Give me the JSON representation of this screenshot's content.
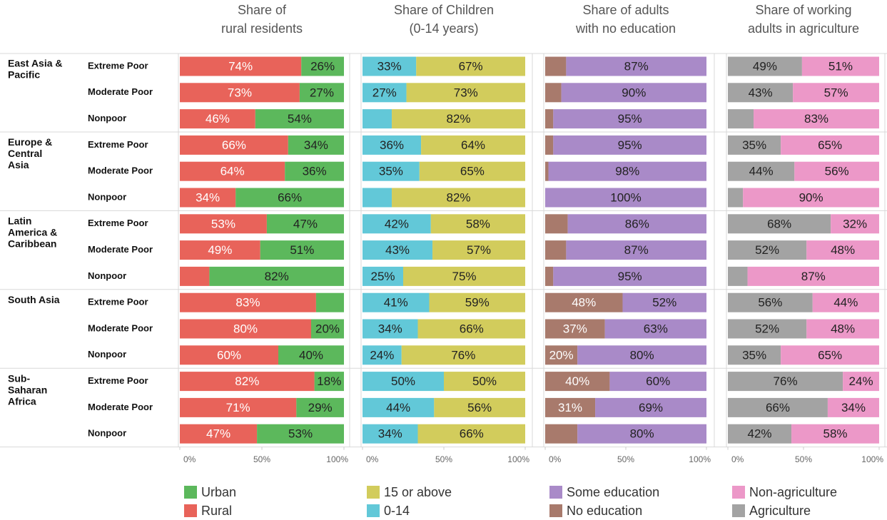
{
  "row_groups": [
    {
      "name": [
        "East Asia &",
        "Pacific"
      ],
      "rows": [
        "Extreme Poor",
        "Moderate Poor",
        "Nonpoor"
      ]
    },
    {
      "name": [
        "Europe &",
        "Central",
        "Asia"
      ],
      "rows": [
        "Extreme Poor",
        "Moderate Poor",
        "Nonpoor"
      ]
    },
    {
      "name": [
        "Latin",
        "America &",
        "Caribbean"
      ],
      "rows": [
        "Extreme Poor",
        "Moderate Poor",
        "Nonpoor"
      ]
    },
    {
      "name": [
        "South Asia"
      ],
      "rows": [
        "Extreme Poor",
        "Moderate Poor",
        "Nonpoor"
      ]
    },
    {
      "name": [
        "Sub-",
        "Saharan",
        "Africa"
      ],
      "rows": [
        "Extreme Poor",
        "Moderate Poor",
        "Nonpoor"
      ]
    }
  ],
  "chart_data": [
    {
      "type": "stacked_barh",
      "title": [
        "Share of",
        "rural residents"
      ],
      "xlim": [
        0,
        100
      ],
      "xticks": [
        {
          "value": 0,
          "label": "0%"
        },
        {
          "value": 50,
          "label": "50%"
        },
        {
          "value": 100,
          "label": "100%"
        }
      ],
      "series": [
        {
          "name": "Rural",
          "color": "#e8635a",
          "label_color": "#ffffff",
          "values": [
            74,
            73,
            46,
            66,
            64,
            34,
            53,
            49,
            18,
            83,
            80,
            60,
            82,
            71,
            47
          ],
          "value_labels": [
            "74%",
            "73%",
            "46%",
            "66%",
            "64%",
            "34%",
            "53%",
            "49%",
            null,
            "83%",
            "80%",
            "60%",
            "82%",
            "71%",
            "47%"
          ]
        },
        {
          "name": "Urban",
          "color": "#5cb85c",
          "label_color": "#222222",
          "values": [
            26,
            27,
            54,
            34,
            36,
            66,
            47,
            51,
            82,
            17,
            20,
            40,
            18,
            29,
            53
          ],
          "value_labels": [
            "26%",
            "27%",
            "54%",
            "34%",
            "36%",
            "66%",
            "47%",
            "51%",
            "82%",
            null,
            "20%",
            "40%",
            "18%",
            "29%",
            "53%"
          ]
        }
      ]
    },
    {
      "type": "stacked_barh",
      "title": [
        "Share of Children",
        "(0-14 years)"
      ],
      "xlim": [
        0,
        100
      ],
      "xticks": [
        {
          "value": 0,
          "label": "0%"
        },
        {
          "value": 50,
          "label": "50%"
        },
        {
          "value": 100,
          "label": "100%"
        }
      ],
      "series": [
        {
          "name": "0-14",
          "color": "#62c8d8",
          "label_color": "#222222",
          "values": [
            33,
            27,
            18,
            36,
            35,
            18,
            42,
            43,
            25,
            41,
            34,
            24,
            50,
            44,
            34
          ],
          "value_labels": [
            "33%",
            "27%",
            null,
            "36%",
            "35%",
            null,
            "42%",
            "43%",
            "25%",
            "41%",
            "34%",
            "24%",
            "50%",
            "44%",
            "34%"
          ]
        },
        {
          "name": "15 or above",
          "color": "#d2cc5c",
          "label_color": "#222222",
          "values": [
            67,
            73,
            82,
            64,
            65,
            82,
            58,
            57,
            75,
            59,
            66,
            76,
            50,
            56,
            66
          ],
          "value_labels": [
            "67%",
            "73%",
            "82%",
            "64%",
            "65%",
            "82%",
            "58%",
            "57%",
            "75%",
            "59%",
            "66%",
            "76%",
            "50%",
            "56%",
            "66%"
          ]
        }
      ]
    },
    {
      "type": "stacked_barh",
      "title": [
        "Share of adults",
        "with no education"
      ],
      "xlim": [
        0,
        100
      ],
      "xticks": [
        {
          "value": 0,
          "label": "0%"
        },
        {
          "value": 50,
          "label": "50%"
        },
        {
          "value": 100,
          "label": "100%"
        }
      ],
      "series": [
        {
          "name": "No education",
          "color": "#a87a6c",
          "label_color": "#ffffff",
          "values": [
            13,
            10,
            5,
            5,
            2,
            0,
            14,
            13,
            5,
            48,
            37,
            20,
            40,
            31,
            20
          ],
          "value_labels": [
            null,
            null,
            null,
            null,
            null,
            null,
            null,
            null,
            null,
            "48%",
            "37%",
            "20%",
            "40%",
            "31%",
            null
          ]
        },
        {
          "name": "Some education",
          "color": "#a98ac8",
          "label_color": "#222222",
          "values": [
            87,
            90,
            95,
            95,
            98,
            100,
            86,
            87,
            95,
            52,
            63,
            80,
            60,
            69,
            80
          ],
          "value_labels": [
            "87%",
            "90%",
            "95%",
            "95%",
            "98%",
            "100%",
            "86%",
            "87%",
            "95%",
            "52%",
            "63%",
            "80%",
            "60%",
            "69%",
            "80%"
          ]
        }
      ]
    },
    {
      "type": "stacked_barh",
      "title": [
        "Share of working",
        "adults in agriculture"
      ],
      "xlim": [
        0,
        100
      ],
      "xticks": [
        {
          "value": 0,
          "label": "0%"
        },
        {
          "value": 50,
          "label": "50%"
        },
        {
          "value": 100,
          "label": "100%"
        }
      ],
      "series": [
        {
          "name": "Agriculture",
          "color": "#a3a3a3",
          "label_color": "#222222",
          "values": [
            49,
            43,
            17,
            35,
            44,
            10,
            68,
            52,
            13,
            56,
            52,
            35,
            76,
            66,
            42
          ],
          "value_labels": [
            "49%",
            "43%",
            null,
            "35%",
            "44%",
            null,
            "68%",
            "52%",
            null,
            "56%",
            "52%",
            "35%",
            "76%",
            "66%",
            "42%"
          ]
        },
        {
          "name": "Non-agriculture",
          "color": "#ec98c8",
          "label_color": "#222222",
          "values": [
            51,
            57,
            83,
            65,
            56,
            90,
            32,
            48,
            87,
            44,
            48,
            65,
            24,
            34,
            58
          ],
          "value_labels": [
            "51%",
            "57%",
            "83%",
            "65%",
            "56%",
            "90%",
            "32%",
            "48%",
            "87%",
            "44%",
            "48%",
            "65%",
            "24%",
            "34%",
            "58%"
          ]
        }
      ]
    }
  ]
}
